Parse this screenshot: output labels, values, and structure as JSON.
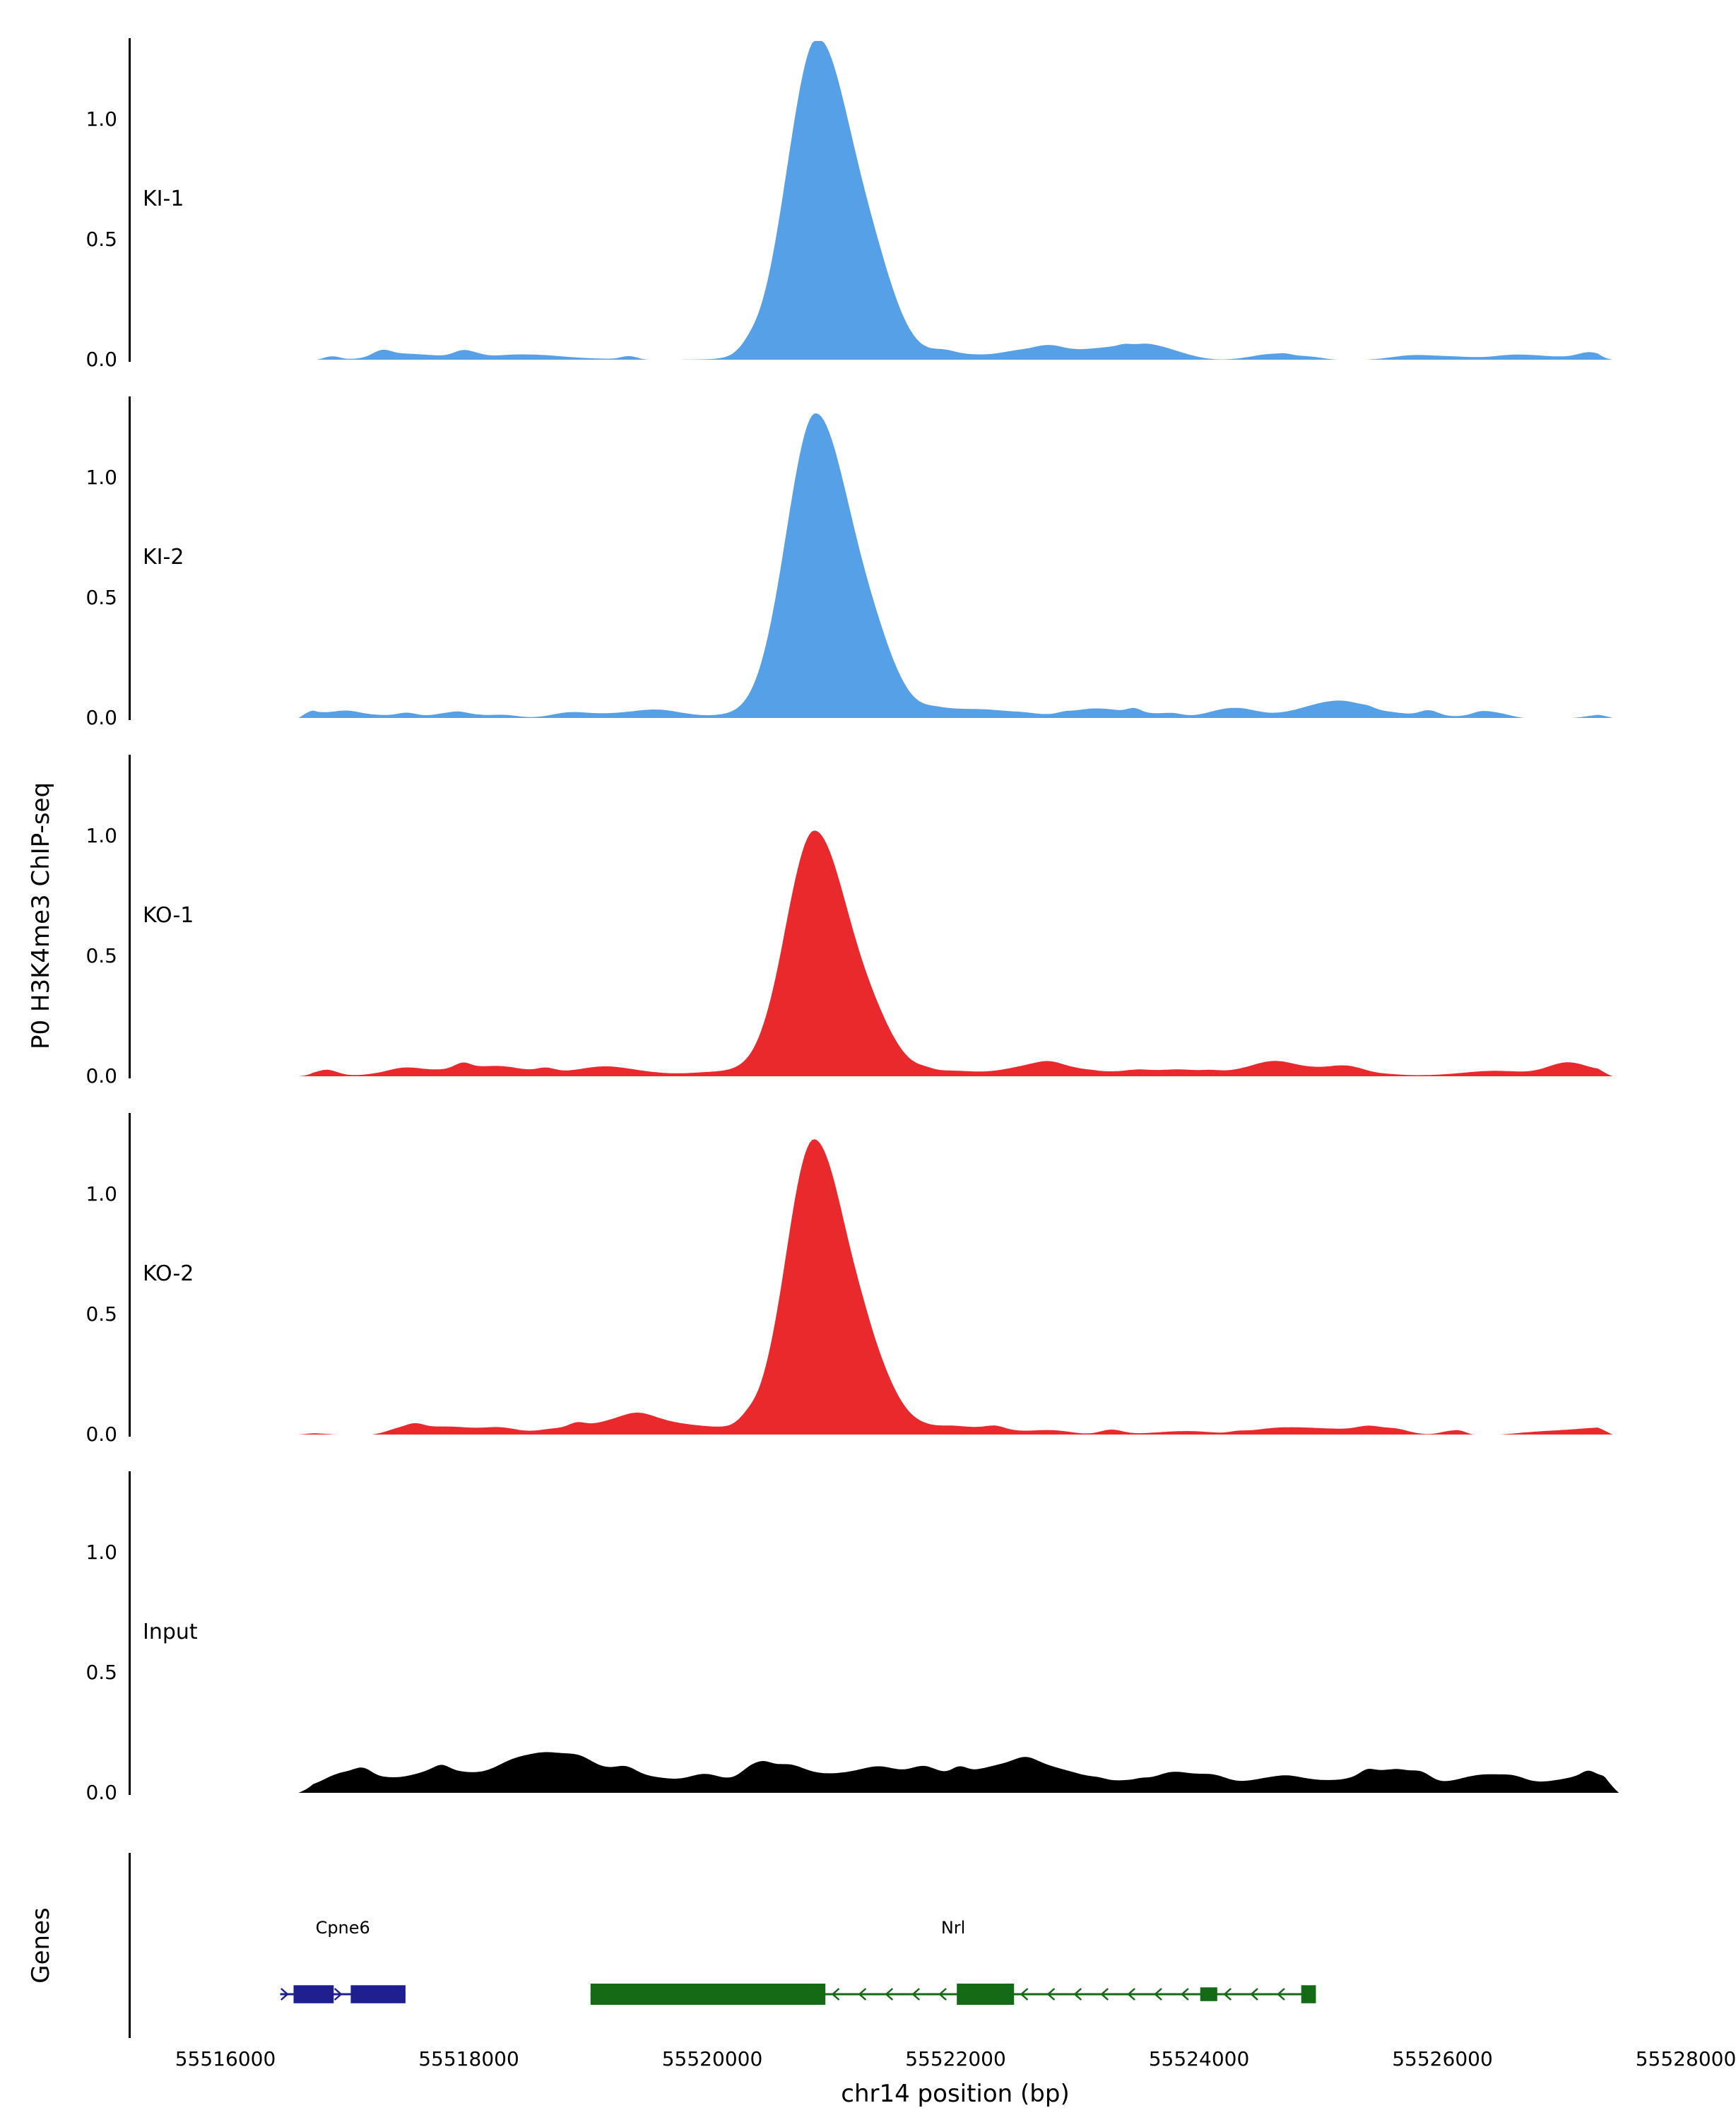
{
  "figure": {
    "ylabel": "P0 H3K4me3 ChIP-seq",
    "genes_label": "Genes",
    "xlabel": "chr14 position (bp)"
  },
  "chart_data": {
    "type": "area",
    "title": "",
    "xlabel": "chr14 position (bp)",
    "ylabel": "P0 H3K4me3 ChIP-seq",
    "grid": false,
    "legend": "none",
    "x_range": [
      55516000,
      55528000
    ],
    "x_ticks": [
      55516000,
      55518000,
      55520000,
      55522000,
      55524000,
      55526000,
      55528000
    ],
    "x_tick_labels": [
      "55516000",
      "55518000",
      "55520000",
      "55522000",
      "55524000",
      "55526000",
      "55528000"
    ],
    "y_ticks": [
      0.0,
      0.5,
      1.0
    ],
    "y_tick_labels": [
      "0.0",
      "0.5",
      "1.0"
    ],
    "ylim": [
      0,
      1.34
    ],
    "tracks": [
      {
        "label": "KI-1",
        "color": "#55A0E6",
        "seed": 11,
        "noise_amp": 0.022,
        "data_start": 55516600,
        "data_end": 55527400,
        "peak": {
          "center": 55520860,
          "height": 1.3,
          "sigma_left": 240,
          "sigma_right": 300,
          "shoulder": {
            "offset": 500,
            "height": 0.13,
            "sigma": 170
          }
        }
      },
      {
        "label": "KI-2",
        "color": "#55A0E6",
        "seed": 22,
        "noise_amp": 0.022,
        "data_start": 55516600,
        "data_end": 55527400,
        "peak": {
          "center": 55520850,
          "height": 1.26,
          "sigma_left": 240,
          "sigma_right": 300,
          "shoulder": {
            "offset": 520,
            "height": 0.12,
            "sigma": 170
          }
        }
      },
      {
        "label": "KO-1",
        "color": "#E9292C",
        "seed": 33,
        "noise_amp": 0.02,
        "data_start": 55516600,
        "data_end": 55527400,
        "peak": {
          "center": 55520840,
          "height": 1.01,
          "sigma_left": 230,
          "sigma_right": 290,
          "shoulder": {
            "offset": 520,
            "height": 0.09,
            "sigma": 160
          }
        }
      },
      {
        "label": "KO-2",
        "color": "#E9292C",
        "seed": 44,
        "noise_amp": 0.02,
        "data_start": 55516600,
        "data_end": 55527400,
        "peak": {
          "center": 55520840,
          "height": 1.22,
          "sigma_left": 230,
          "sigma_right": 290,
          "shoulder": {
            "offset": 520,
            "height": 0.1,
            "sigma": 160
          }
        }
      },
      {
        "label": "Input",
        "color": "#000000",
        "seed": 55,
        "noise_amp": 0.03,
        "floor": 0.02,
        "data_start": 55516600,
        "data_end": 55527450,
        "peak": null
      }
    ],
    "genes": [
      {
        "name": "Cpne6",
        "color": "#1F1F8F",
        "strand": "+",
        "start": 55516450,
        "end": 55517480,
        "exons": [
          [
            55516560,
            55516890,
            0.85
          ],
          [
            55517030,
            55517480,
            0.85
          ]
        ]
      },
      {
        "name": "Nrl",
        "color": "#156B15",
        "strand": "-",
        "start": 55519000,
        "end": 55524960,
        "exons": [
          [
            55519000,
            55520930,
            1.0
          ],
          [
            55522010,
            55522480,
            1.0
          ],
          [
            55524010,
            55524150,
            0.65
          ],
          [
            55524840,
            55524960,
            0.85
          ]
        ]
      }
    ]
  }
}
